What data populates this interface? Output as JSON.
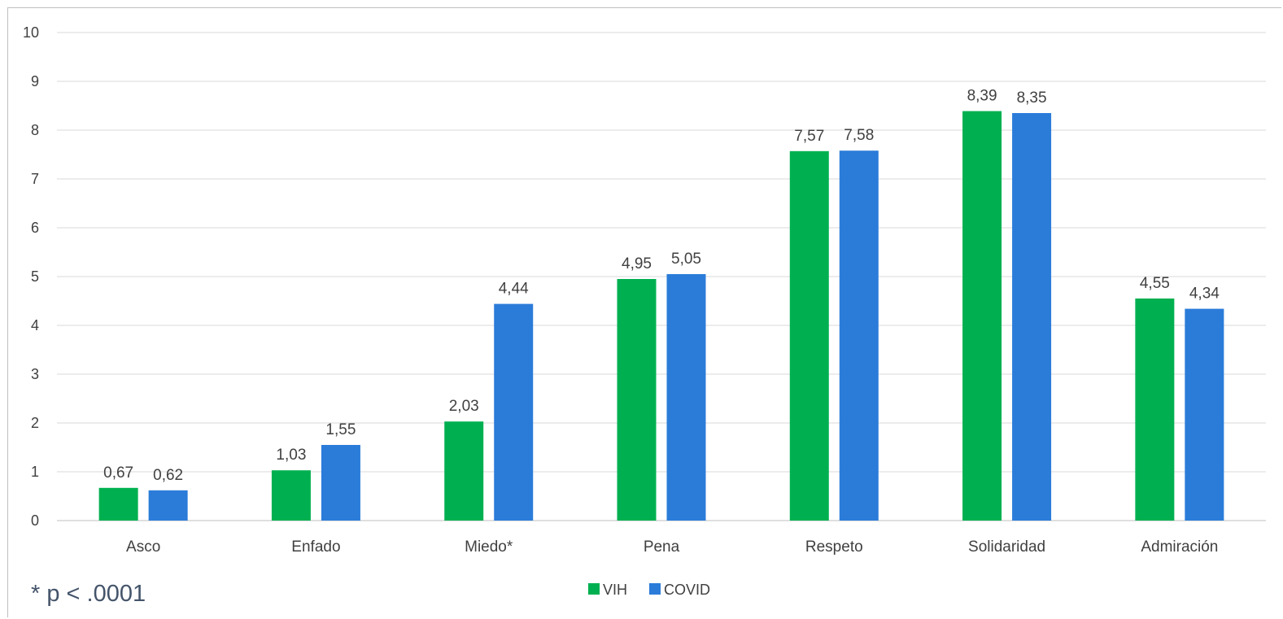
{
  "chart_data": {
    "type": "bar",
    "categories": [
      "Asco",
      "Enfado",
      "Miedo*",
      "Pena",
      "Respeto",
      "Solidaridad",
      "Admiración"
    ],
    "series": [
      {
        "name": "VIH",
        "color": "#00b050",
        "values": [
          0.67,
          1.03,
          2.03,
          4.95,
          7.57,
          8.39,
          4.55
        ],
        "labels": [
          "0,67",
          "1,03",
          "2,03",
          "4,95",
          "7,57",
          "8,39",
          "4,55"
        ]
      },
      {
        "name": "COVID",
        "color": "#2b7cd9",
        "values": [
          0.62,
          1.55,
          4.44,
          5.05,
          7.58,
          8.35,
          4.34
        ],
        "labels": [
          "0,62",
          "1,55",
          "4,44",
          "5,05",
          "7,58",
          "8,35",
          "4,34"
        ]
      }
    ],
    "ylim": [
      0,
      10
    ],
    "yticks": [
      "0",
      "1",
      "2",
      "3",
      "4",
      "5",
      "6",
      "7",
      "8",
      "9",
      "10"
    ],
    "grid": true,
    "legend": "bottom",
    "footnote": "* p < .0001"
  }
}
